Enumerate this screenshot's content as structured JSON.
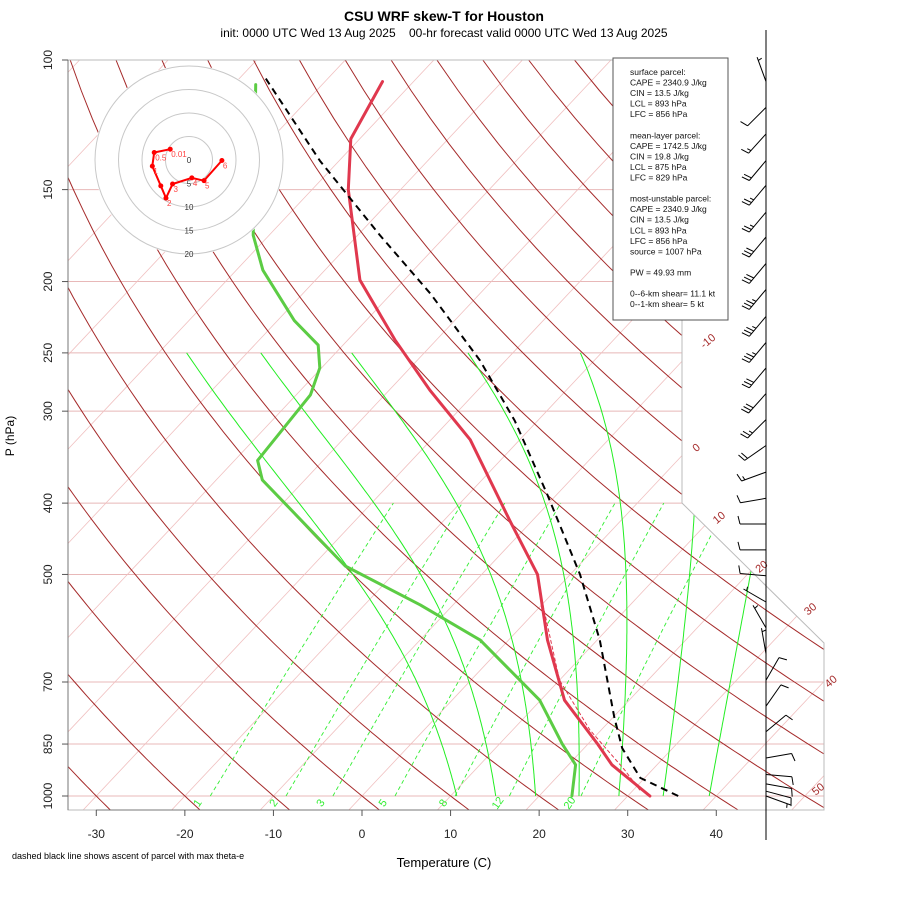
{
  "chart_data": {
    "type": "skewt",
    "title": "CSU WRF skew-T for Houston",
    "subtitle": "init: 0000 UTC Wed 13 Aug 2025    00-hr forecast valid 0000 UTC Wed 13 Aug 2025",
    "xlabel": "Temperature (C)",
    "ylabel": "P (hPa)",
    "footnote": "dashed black line shows ascent of parcel with max theta-e",
    "xlim": [
      -30,
      40
    ],
    "ylim": [
      1000,
      100
    ],
    "x_ticks": [
      "-30",
      "-20",
      "-10",
      "0",
      "10",
      "20",
      "30",
      "40"
    ],
    "y_ticks": [
      "100",
      "150",
      "200",
      "250",
      "300",
      "400",
      "500",
      "700",
      "850",
      "1000"
    ],
    "isotherm_labels": [
      "-10",
      "0",
      "10",
      "20",
      "30",
      "40",
      "50"
    ],
    "mixing_ratio_labels": [
      "1",
      "2",
      "3",
      "5",
      "8",
      "12",
      "20"
    ],
    "moist_adiabat_start_temps": [
      10.7,
      15.1,
      19.6,
      24.5,
      29,
      34,
      39.2
    ],
    "temperature": [
      {
        "p": 1000,
        "T": 32.5
      },
      {
        "p": 907,
        "T": 24.9
      },
      {
        "p": 850,
        "T": 21.1
      },
      {
        "p": 741,
        "T": 12.7
      },
      {
        "p": 614,
        "T": 4.4
      },
      {
        "p": 500,
        "T": -3.7
      },
      {
        "p": 422,
        "T": -12.6
      },
      {
        "p": 328,
        "T": -25.6
      },
      {
        "p": 281,
        "T": -35.4
      },
      {
        "p": 240,
        "T": -44.7
      },
      {
        "p": 199,
        "T": -55
      },
      {
        "p": 150,
        "T": -65.9
      },
      {
        "p": 128,
        "T": -71
      },
      {
        "p": 107,
        "T": -73.5
      }
    ],
    "dewpoint": [
      {
        "p": 1000,
        "T": 23.7
      },
      {
        "p": 907,
        "T": 20.8
      },
      {
        "p": 850,
        "T": 17.1
      },
      {
        "p": 741,
        "T": 9.9
      },
      {
        "p": 614,
        "T": -3.2
      },
      {
        "p": 550,
        "T": -13.7
      },
      {
        "p": 487,
        "T": -26.3
      },
      {
        "p": 372,
        "T": -44.8
      },
      {
        "p": 350,
        "T": -47.4
      },
      {
        "p": 285,
        "T": -48.4
      },
      {
        "p": 262,
        "T": -50.2
      },
      {
        "p": 244,
        "T": -52.8
      },
      {
        "p": 226,
        "T": -58.1
      },
      {
        "p": 193,
        "T": -67
      },
      {
        "p": 173,
        "T": -71.8
      },
      {
        "p": 108,
        "T": -87.5
      }
    ],
    "parcel": [
      {
        "p": 1000,
        "T": 35.7
      },
      {
        "p": 945,
        "T": 29.5
      },
      {
        "p": 861,
        "T": 24.3
      },
      {
        "p": 783,
        "T": 20.2
      },
      {
        "p": 614,
        "T": 10.3
      },
      {
        "p": 500,
        "T": 1.1
      },
      {
        "p": 390,
        "T": -11
      },
      {
        "p": 309,
        "T": -22.6
      },
      {
        "p": 256,
        "T": -32.9
      },
      {
        "p": 208,
        "T": -45.5
      },
      {
        "p": 173,
        "T": -57.5
      },
      {
        "p": 137,
        "T": -72.2
      },
      {
        "p": 106,
        "T": -87
      }
    ],
    "parcel_virtual": [
      {
        "p": 981,
        "T": 30.7
      },
      {
        "p": 922,
        "T": 26.9
      },
      {
        "p": 813,
        "T": 18.7
      },
      {
        "p": 696,
        "T": 10
      },
      {
        "p": 525,
        "T": -1.8
      }
    ],
    "wind": [
      {
        "p": 107,
        "dir": 340,
        "kt": 5
      },
      {
        "p": 116,
        "dir": 225,
        "kt": 10
      },
      {
        "p": 126,
        "dir": 222,
        "kt": 15
      },
      {
        "p": 137,
        "dir": 220,
        "kt": 20
      },
      {
        "p": 148,
        "dir": 220,
        "kt": 25
      },
      {
        "p": 161,
        "dir": 220,
        "kt": 25
      },
      {
        "p": 174,
        "dir": 220,
        "kt": 30
      },
      {
        "p": 189,
        "dir": 220,
        "kt": 30
      },
      {
        "p": 205,
        "dir": 220,
        "kt": 35
      },
      {
        "p": 223,
        "dir": 220,
        "kt": 35
      },
      {
        "p": 242,
        "dir": 220,
        "kt": 35
      },
      {
        "p": 262,
        "dir": 220,
        "kt": 30
      },
      {
        "p": 284,
        "dir": 222,
        "kt": 30
      },
      {
        "p": 308,
        "dir": 225,
        "kt": 25
      },
      {
        "p": 334,
        "dir": 235,
        "kt": 20
      },
      {
        "p": 363,
        "dir": 250,
        "kt": 15
      },
      {
        "p": 394,
        "dir": 260,
        "kt": 10
      },
      {
        "p": 427,
        "dir": 270,
        "kt": 10
      },
      {
        "p": 463,
        "dir": 270,
        "kt": 10
      },
      {
        "p": 502,
        "dir": 275,
        "kt": 10
      },
      {
        "p": 545,
        "dir": 300,
        "kt": 5
      },
      {
        "p": 591,
        "dir": 330,
        "kt": 5
      },
      {
        "p": 641,
        "dir": 350,
        "kt": 5
      },
      {
        "p": 696,
        "dir": 30,
        "kt": 10
      },
      {
        "p": 755,
        "dir": 35,
        "kt": 10
      },
      {
        "p": 818,
        "dir": 50,
        "kt": 10
      },
      {
        "p": 888,
        "dir": 80,
        "kt": 10
      },
      {
        "p": 935,
        "dir": 95,
        "kt": 10
      },
      {
        "p": 963,
        "dir": 100,
        "kt": 10
      },
      {
        "p": 985,
        "dir": 105,
        "kt": 10
      },
      {
        "p": 1000,
        "dir": 110,
        "kt": 5
      }
    ],
    "hodograph": {
      "rings": [
        "0",
        "5",
        "10",
        "15",
        "20"
      ],
      "points": [
        {
          "label": "0.01",
          "u": -4.0,
          "v": 2.3
        },
        {
          "label": "0.5",
          "u": -7.4,
          "v": 1.6
        },
        {
          "label": "1",
          "u": -7.8,
          "v": -1.3
        },
        {
          "label": "",
          "u": -6.0,
          "v": -5.5
        },
        {
          "label": "2",
          "u": -4.9,
          "v": -8.1
        },
        {
          "label": "3",
          "u": -3.5,
          "v": -5.1
        },
        {
          "label": "4",
          "u": 0.6,
          "v": -3.8
        },
        {
          "label": "5",
          "u": 3.2,
          "v": -4.4
        },
        {
          "label": "6",
          "u": 7.0,
          "v": -0.1
        }
      ]
    },
    "info_box": [
      "surface parcel:",
      "CAPE = 2340.9 J/kg",
      "CIN = 13.5 J/kg",
      "LCL = 893 hPa",
      "LFC = 856 hPa",
      "",
      "mean-layer parcel:",
      "CAPE = 1742.5 J/kg",
      "CIN = 19.8 J/kg",
      "LCL = 875 hPa",
      "LFC = 829 hPa",
      "",
      "most-unstable parcel:",
      "CAPE = 2340.9 J/kg",
      "CIN = 13.5 J/kg",
      "LCL = 893 hPa",
      "LFC = 856 hPa",
      "source = 1007 hPa",
      "",
      "PW =  49.93 mm",
      "",
      "0--6-km shear= 11.1 kt",
      "0--1-km shear= 5 kt"
    ],
    "colors": {
      "temperature": "#e0384e",
      "dewpoint": "#5ccc44",
      "parcel": "#000000",
      "dry_adiabat": "#a52a2a",
      "isotherm": "#f0c0c0",
      "isobar": "#e8b8b8",
      "moist_adiabat": "#22ee22",
      "mixing_ratio": "#33ee33",
      "hodograph": "#ff0000"
    }
  }
}
